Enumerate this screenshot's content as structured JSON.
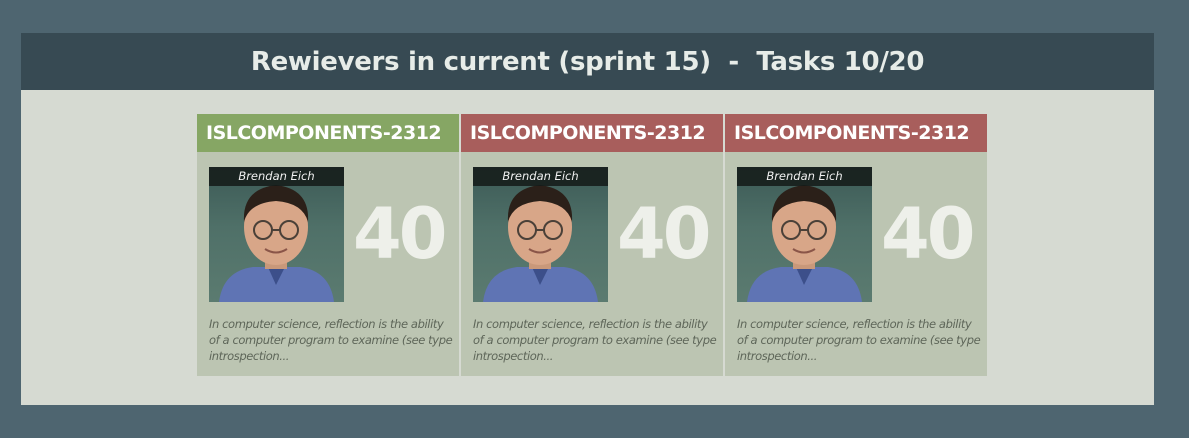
{
  "header": {
    "title": "Rewievers in current (sprint 15)  -  Tasks 10/20"
  },
  "cards": [
    {
      "task_id": "ISLCOMPONENTS-2312",
      "status_color": "#86a664",
      "reviewer_name": "Brendan Eich",
      "count": "40",
      "description": "In computer science, reflection is the ability of a computer program to examine (see type introspection..."
    },
    {
      "task_id": "ISLCOMPONENTS-2312",
      "status_color": "#a85e5c",
      "reviewer_name": "Brendan Eich",
      "count": "40",
      "description": "In computer science, reflection is the ability of a computer program to examine (see type introspection..."
    },
    {
      "task_id": "ISLCOMPONENTS-2312",
      "status_color": "#a85e5c",
      "reviewer_name": "Brendan Eich",
      "count": "40",
      "description": "In computer science, reflection is the ability of a computer program to examine (see type introspection..."
    }
  ]
}
